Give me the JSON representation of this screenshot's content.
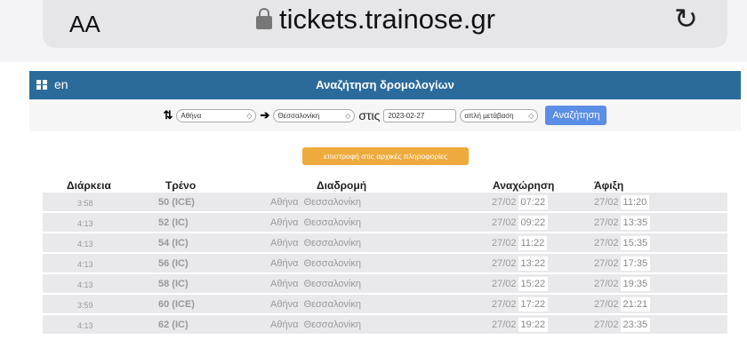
{
  "browser": {
    "text_size": "AA",
    "url": "tickets.trainose.gr"
  },
  "header": {
    "lang": "en",
    "title": "Αναζήτηση δρομολογίων"
  },
  "search": {
    "from": "Αθήνα",
    "to": "Θεσσαλονίκη",
    "on": "στις",
    "date": "2023-02-27",
    "type": "απλή μετάβαση",
    "button": "Αναζήτηση"
  },
  "back_button": "επιστροφή στις αρχικές πληροφορίες",
  "table": {
    "headers": [
      "Διάρκεια",
      "Τρένο",
      "Διαδρομή",
      "Αναχώρηση",
      "Άφιξη"
    ],
    "rows": [
      {
        "duration": "3:58",
        "train": "50 (ICE)",
        "from": "Αθήνα",
        "to": "Θεσσαλονίκη",
        "dep_date": "27/02",
        "dep_time": "07:22",
        "arr_date": "27/02",
        "arr_time": "11:20"
      },
      {
        "duration": "4:13",
        "train": "52 (IC)",
        "from": "Αθήνα",
        "to": "Θεσσαλονίκη",
        "dep_date": "27/02",
        "dep_time": "09:22",
        "arr_date": "27/02",
        "arr_time": "13:35"
      },
      {
        "duration": "4:13",
        "train": "54 (IC)",
        "from": "Αθήνα",
        "to": "Θεσσαλονίκη",
        "dep_date": "27/02",
        "dep_time": "11:22",
        "arr_date": "27/02",
        "arr_time": "15:35"
      },
      {
        "duration": "4:13",
        "train": "56 (IC)",
        "from": "Αθήνα",
        "to": "Θεσσαλονίκη",
        "dep_date": "27/02",
        "dep_time": "13:22",
        "arr_date": "27/02",
        "arr_time": "17:35"
      },
      {
        "duration": "4:13",
        "train": "58 (IC)",
        "from": "Αθήνα",
        "to": "Θεσσαλονίκη",
        "dep_date": "27/02",
        "dep_time": "15:22",
        "arr_date": "27/02",
        "arr_time": "19:35"
      },
      {
        "duration": "3:59",
        "train": "60 (ICE)",
        "from": "Αθήνα",
        "to": "Θεσσαλονίκη",
        "dep_date": "27/02",
        "dep_time": "17:22",
        "arr_date": "27/02",
        "arr_time": "21:21"
      },
      {
        "duration": "4:13",
        "train": "62 (IC)",
        "from": "Αθήνα",
        "to": "Θεσσαλονίκη",
        "dep_date": "27/02",
        "dep_time": "19:22",
        "arr_date": "27/02",
        "arr_time": "23:35"
      }
    ]
  },
  "colors": {
    "header": "#2b6b9c",
    "search_button": "#5b8ee6",
    "back_button": "#eeaa3c"
  }
}
